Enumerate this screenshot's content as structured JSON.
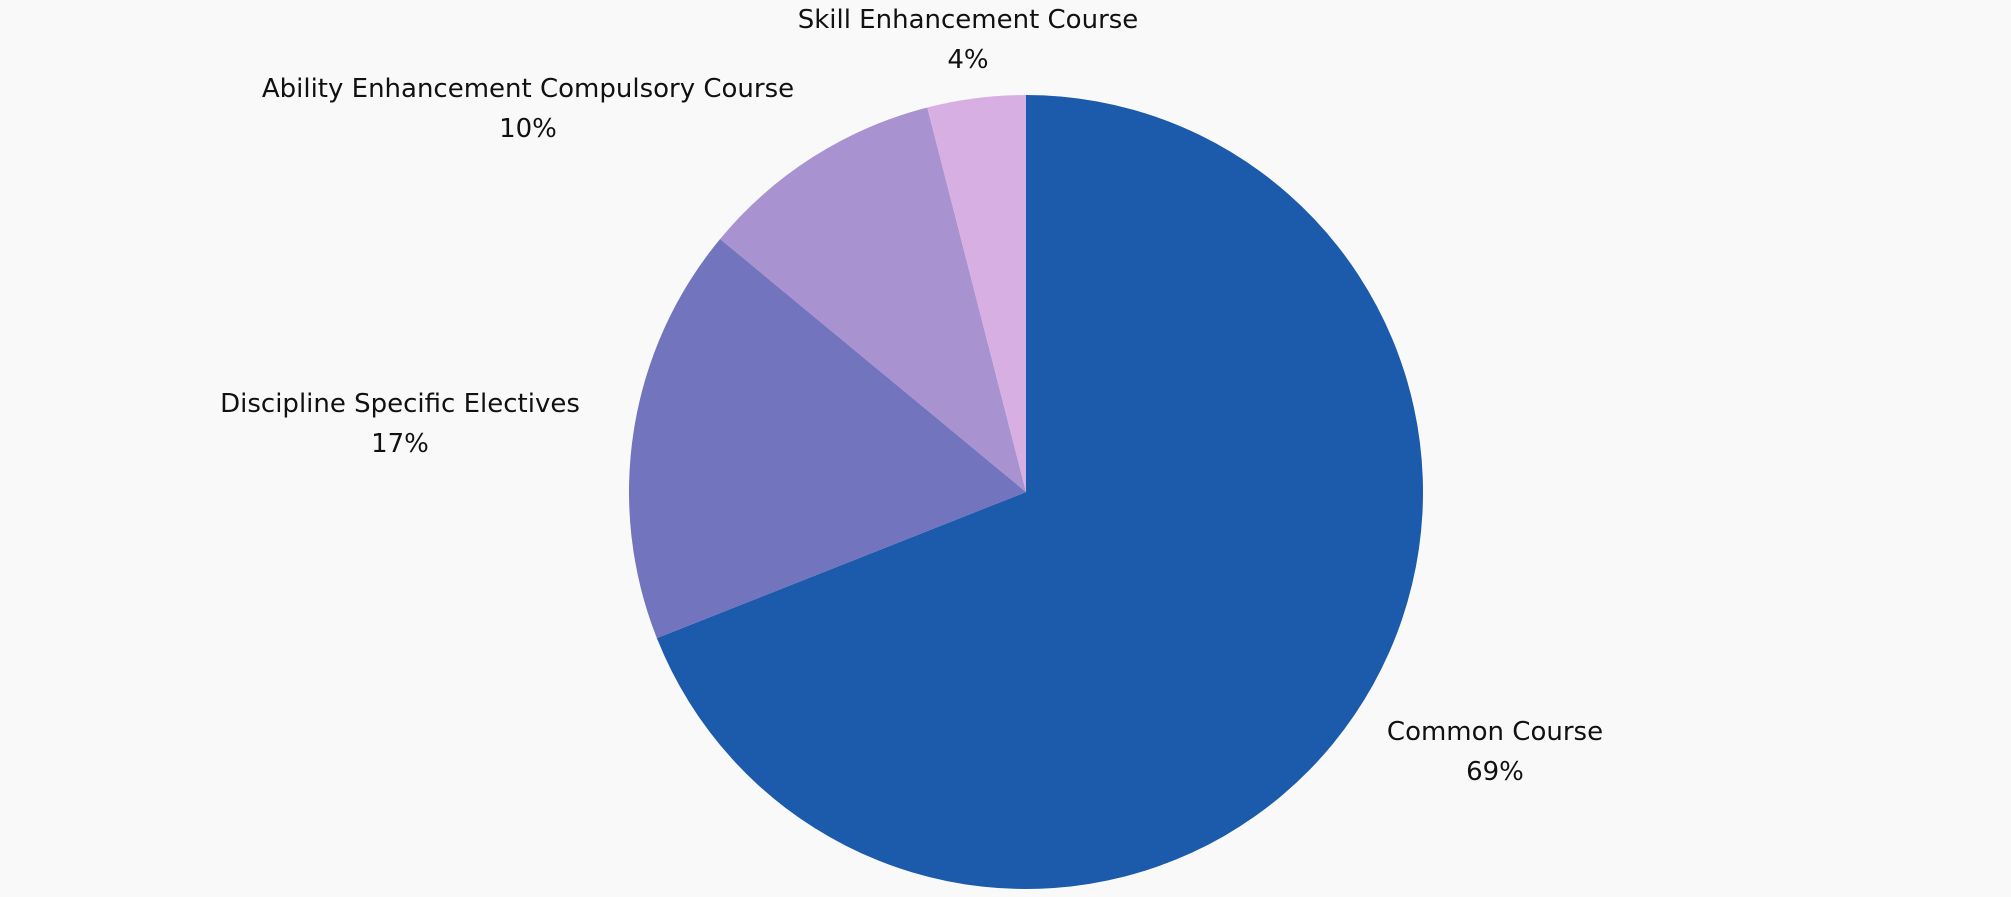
{
  "chart_data": {
    "type": "pie",
    "title": "",
    "start_angle_deg": 0,
    "direction": "clockwise",
    "legend": "none",
    "slices": [
      {
        "label": "Common Course",
        "value": 69,
        "value_label": "69%",
        "color": "#1c5aab"
      },
      {
        "label": "Discipline Specific Electives",
        "value": 17,
        "value_label": "17%",
        "color": "#7274bd"
      },
      {
        "label": "Ability Enhancement Compulsory Course",
        "value": 10,
        "value_label": "10%",
        "color": "#a992d0"
      },
      {
        "label": "Skill Enhancement Course",
        "value": 4,
        "value_label": "4%",
        "color": "#d8afe3"
      }
    ]
  }
}
